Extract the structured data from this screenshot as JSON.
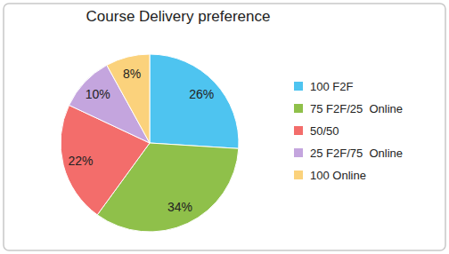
{
  "chart_data": {
    "type": "pie",
    "title": "Course Delivery preference",
    "categories": [
      "100 F2F",
      "75 F2F/25  Online",
      "50/50",
      "25 F2F/75  Online",
      "100 Online"
    ],
    "values": [
      26,
      34,
      22,
      10,
      8
    ],
    "value_labels": [
      "26%",
      "34%",
      "22%",
      "10%",
      "8%"
    ],
    "colors": [
      "#4ec4f0",
      "#8fc04a",
      "#f36d6b",
      "#c4a5de",
      "#fbd27c"
    ],
    "data_labels": true,
    "legend": "right"
  }
}
